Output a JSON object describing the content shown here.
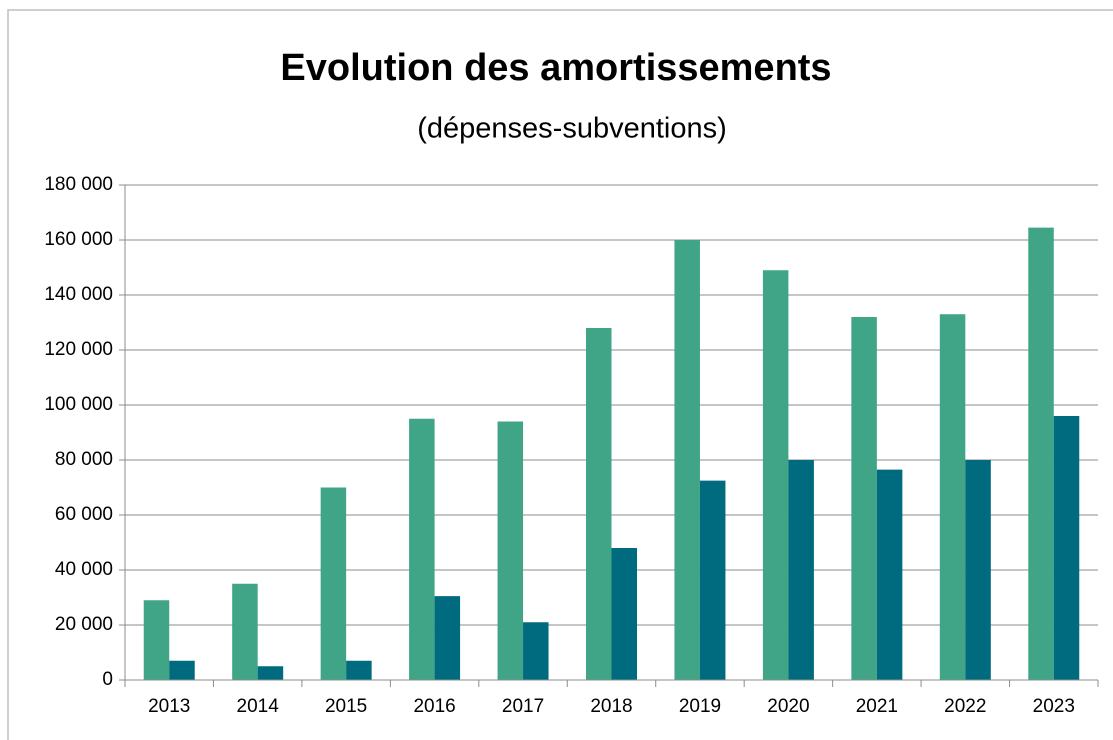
{
  "chart_data": {
    "type": "bar",
    "title": "Evolution des amortissements",
    "subtitle": "(dépenses-subventions)",
    "categories": [
      "2013",
      "2014",
      "2015",
      "2016",
      "2017",
      "2018",
      "2019",
      "2020",
      "2021",
      "2022",
      "2023"
    ],
    "series": [
      {
        "color": "#3fa586",
        "values": [
          29000,
          35000,
          70000,
          95000,
          94000,
          128000,
          160000,
          149000,
          132000,
          133000,
          164500
        ]
      },
      {
        "color": "#006b7f",
        "values": [
          7000,
          5000,
          7000,
          30500,
          21000,
          48000,
          72500,
          80000,
          76500,
          80000,
          96000
        ]
      }
    ],
    "ylim": [
      0,
      180000
    ],
    "yticks": [
      0,
      {
        "value": 20000,
        "label": "20 000"
      },
      {
        "value": 40000,
        "label": "40 000"
      },
      {
        "value": 60000,
        "label": "60 000"
      },
      {
        "value": 80000,
        "label": "80 000"
      },
      {
        "value": 100000,
        "label": "100 000"
      },
      {
        "value": 120000,
        "label": "120 000"
      },
      {
        "value": 140000,
        "label": "140 000"
      },
      {
        "value": 160000,
        "label": "160 000"
      },
      {
        "value": 180000,
        "label": "180 000"
      }
    ],
    "grid": true
  }
}
